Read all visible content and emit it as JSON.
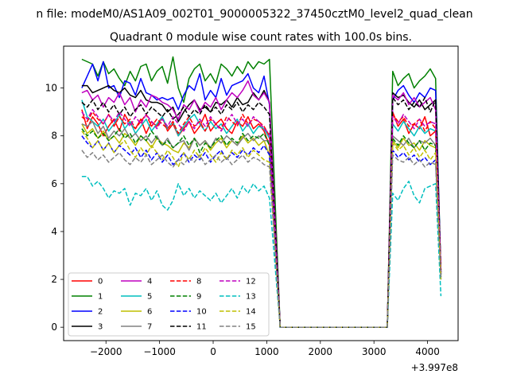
{
  "figure": {
    "suptitle": "n file: modeM0/AS1A09_002T01_9000005322_37450cztM0_level2_quad_clean",
    "title": "Quadrant 0 module wise count rates with 100.0s bins.",
    "x_offset_label": "+3.997e8"
  },
  "chart_data": {
    "type": "line",
    "title": "Quadrant 0 module wise count rates with 100.0s bins.",
    "x_offset": 399700000,
    "xlim": [
      -2790,
      4570
    ],
    "ylim": [
      -0.56,
      11.75
    ],
    "xticks": [
      -2000,
      -1000,
      0,
      1000,
      2000,
      3000,
      4000
    ],
    "xtick_labels": [
      "−2000",
      "−1000",
      "0",
      "1000",
      "2000",
      "3000",
      "4000"
    ],
    "yticks": [
      0,
      2,
      4,
      6,
      8,
      10
    ],
    "ytick_labels": [
      "0",
      "2",
      "4",
      "6",
      "8",
      "10"
    ],
    "grid": false,
    "legend_position": "lower-left",
    "legend_columns": 4,
    "segments": [
      {
        "x0": -2450,
        "n": 36,
        "step": 100
      },
      {
        "x0": 1250,
        "n": 21,
        "step": 100
      },
      {
        "x0": 3350,
        "n": 10,
        "step": 100
      }
    ],
    "series": [
      {
        "name": "0",
        "color": "#ff0000",
        "dash": "solid",
        "values": [
          9.1,
          8.3,
          8.8,
          8.5,
          8.0,
          8.4,
          8.7,
          8.2,
          8.9,
          8.5,
          8.3,
          8.7,
          8.1,
          8.6,
          8.4,
          8.8,
          8.2,
          8.5,
          8.0,
          8.3,
          8.6,
          8.1,
          8.4,
          8.9,
          8.2,
          8.5,
          8.7,
          8.3,
          8.1,
          8.6,
          8.4,
          8.8,
          8.3,
          8.5,
          8.2,
          7.6,
          0,
          0,
          0,
          0,
          0,
          0,
          0,
          0,
          0,
          0,
          0,
          0,
          0,
          0,
          0,
          0,
          0,
          0,
          0,
          0,
          0,
          9.0,
          8.4,
          8.7,
          8.1,
          8.5,
          8.3,
          8.8,
          8.0,
          8.2,
          2.4
        ]
      },
      {
        "name": "1",
        "color": "#008000",
        "dash": "solid",
        "values": [
          11.2,
          11.1,
          11.0,
          10.5,
          11.1,
          10.6,
          10.8,
          10.4,
          10.1,
          10.7,
          10.3,
          10.9,
          11.0,
          10.3,
          10.7,
          10.9,
          10.2,
          11.3,
          10.0,
          9.4,
          10.4,
          10.8,
          11.0,
          10.3,
          10.6,
          10.2,
          11.0,
          10.8,
          10.5,
          10.9,
          10.6,
          11.1,
          10.8,
          11.1,
          11.0,
          11.2,
          0,
          0,
          0,
          0,
          0,
          0,
          0,
          0,
          0,
          0,
          0,
          0,
          0,
          0,
          0,
          0,
          0,
          0,
          0,
          0,
          0,
          10.7,
          10.1,
          10.4,
          10.6,
          10.0,
          10.3,
          10.5,
          10.8,
          10.4,
          2.2
        ]
      },
      {
        "name": "2",
        "color": "#0000ff",
        "dash": "solid",
        "values": [
          10.0,
          10.5,
          11.0,
          10.3,
          11.1,
          10.0,
          10.1,
          9.6,
          10.3,
          10.2,
          9.7,
          10.4,
          9.8,
          9.7,
          9.5,
          9.6,
          9.5,
          9.6,
          9.1,
          9.7,
          10.1,
          9.9,
          10.6,
          9.5,
          9.9,
          9.6,
          10.4,
          9.7,
          10.1,
          10.2,
          10.3,
          10.6,
          10.0,
          9.8,
          10.5,
          9.3,
          0,
          0,
          0,
          0,
          0,
          0,
          0,
          0,
          0,
          0,
          0,
          0,
          0,
          0,
          0,
          0,
          0,
          0,
          0,
          0,
          0,
          9.5,
          9.9,
          10.1,
          9.7,
          9.4,
          9.8,
          9.6,
          10.0,
          9.9,
          2.3
        ]
      },
      {
        "name": "3",
        "color": "#000000",
        "dash": "solid",
        "values": [
          10.1,
          10.1,
          9.8,
          9.9,
          10.0,
          10.1,
          9.9,
          9.8,
          10.0,
          9.7,
          9.6,
          9.9,
          9.5,
          9.4,
          9.4,
          9.3,
          9.0,
          9.2,
          8.6,
          9.0,
          9.3,
          9.5,
          9.1,
          9.2,
          9.0,
          9.4,
          9.3,
          9.5,
          9.2,
          9.6,
          9.3,
          9.4,
          9.8,
          9.5,
          9.9,
          9.4,
          0,
          0,
          0,
          0,
          0,
          0,
          0,
          0,
          0,
          0,
          0,
          0,
          0,
          0,
          0,
          0,
          0,
          0,
          0,
          0,
          0,
          9.8,
          9.6,
          9.7,
          9.4,
          9.2,
          9.5,
          9.1,
          9.3,
          9.5,
          2.2
        ]
      },
      {
        "name": "4",
        "color": "#bf00bf",
        "dash": "solid",
        "values": [
          9.8,
          9.9,
          9.5,
          9.7,
          9.2,
          9.6,
          9.4,
          9.8,
          9.3,
          9.6,
          9.0,
          9.5,
          9.2,
          9.7,
          9.6,
          9.4,
          9.3,
          9.1,
          8.7,
          9.3,
          9.1,
          9.5,
          9.0,
          9.4,
          9.2,
          9.6,
          9.1,
          9.5,
          9.8,
          9.6,
          9.9,
          10.3,
          9.7,
          9.5,
          9.8,
          9.4,
          0,
          0,
          0,
          0,
          0,
          0,
          0,
          0,
          0,
          0,
          0,
          0,
          0,
          0,
          0,
          0,
          0,
          0,
          0,
          0,
          0,
          9.7,
          9.5,
          9.8,
          9.3,
          9.6,
          9.2,
          9.4,
          9.6,
          9.1,
          2.3
        ]
      },
      {
        "name": "5",
        "color": "#00bfbf",
        "dash": "solid",
        "values": [
          9.5,
          8.8,
          8.6,
          8.4,
          8.7,
          8.2,
          8.5,
          8.9,
          8.3,
          8.6,
          8.1,
          8.4,
          8.7,
          8.2,
          8.5,
          8.8,
          8.3,
          8.6,
          8.0,
          8.4,
          8.7,
          8.9,
          8.5,
          8.2,
          8.6,
          8.3,
          8.5,
          8.1,
          8.4,
          8.7,
          8.2,
          8.5,
          8.1,
          8.4,
          8.3,
          7.9,
          0,
          0,
          0,
          0,
          0,
          0,
          0,
          0,
          0,
          0,
          0,
          0,
          0,
          0,
          0,
          0,
          0,
          0,
          0,
          0,
          0,
          8.5,
          8.2,
          8.6,
          8.3,
          8.0,
          8.4,
          8.1,
          8.3,
          8.2,
          2.2
        ]
      },
      {
        "name": "6",
        "color": "#bfbf00",
        "dash": "solid",
        "values": [
          8.5,
          8.1,
          8.3,
          7.9,
          8.2,
          7.8,
          8.0,
          7.7,
          8.1,
          7.9,
          7.6,
          8.0,
          7.8,
          7.5,
          7.9,
          7.7,
          7.6,
          7.4,
          7.3,
          7.7,
          7.5,
          7.9,
          7.6,
          7.8,
          7.4,
          7.7,
          7.9,
          7.5,
          7.8,
          7.6,
          8.0,
          7.7,
          7.9,
          7.6,
          7.8,
          7.2,
          0,
          0,
          0,
          0,
          0,
          0,
          0,
          0,
          0,
          0,
          0,
          0,
          0,
          0,
          0,
          0,
          0,
          0,
          0,
          0,
          0,
          7.8,
          7.5,
          7.9,
          7.6,
          7.7,
          7.4,
          7.8,
          7.6,
          7.5,
          2.1
        ]
      },
      {
        "name": "7",
        "color": "#808080",
        "dash": "solid",
        "values": [
          8.5,
          8.4,
          8.6,
          8.1,
          8.4,
          7.9,
          8.2,
          8.0,
          8.3,
          7.9,
          8.1,
          7.8,
          8.0,
          7.7,
          8.0,
          7.6,
          7.9,
          7.5,
          7.7,
          7.8,
          7.4,
          7.9,
          7.6,
          7.8,
          7.5,
          7.9,
          7.7,
          8.0,
          7.8,
          7.6,
          7.9,
          8.1,
          7.8,
          8.0,
          7.8,
          7.8,
          0,
          0,
          0,
          0,
          0,
          0,
          0,
          0,
          0,
          0,
          0,
          0,
          0,
          0,
          0,
          0,
          0,
          0,
          0,
          0,
          0,
          8.0,
          7.8,
          7.6,
          7.9,
          7.5,
          7.8,
          7.7,
          7.9,
          7.6,
          2.1
        ]
      },
      {
        "name": "8",
        "color": "#ff0000",
        "dash": "dashed",
        "values": [
          8.8,
          8.6,
          9.0,
          8.7,
          8.5,
          8.9,
          8.4,
          8.8,
          8.5,
          8.7,
          8.3,
          8.6,
          8.9,
          8.4,
          8.7,
          8.5,
          8.3,
          8.6,
          8.1,
          8.5,
          8.8,
          8.4,
          8.6,
          8.2,
          8.7,
          8.5,
          8.3,
          8.8,
          8.6,
          8.4,
          8.9,
          8.5,
          8.7,
          8.6,
          8.4,
          8.0,
          0,
          0,
          0,
          0,
          0,
          0,
          0,
          0,
          0,
          0,
          0,
          0,
          0,
          0,
          0,
          0,
          0,
          0,
          0,
          0,
          0,
          8.9,
          8.6,
          8.8,
          8.4,
          8.5,
          8.7,
          8.2,
          8.6,
          8.3,
          2.4
        ]
      },
      {
        "name": "9",
        "color": "#008000",
        "dash": "dashed",
        "values": [
          8.3,
          8.0,
          8.2,
          7.9,
          8.1,
          7.8,
          8.0,
          8.3,
          7.9,
          8.1,
          7.7,
          8.0,
          7.8,
          8.2,
          7.9,
          7.6,
          7.8,
          7.5,
          7.7,
          8.0,
          7.6,
          7.9,
          7.3,
          7.7,
          7.5,
          7.8,
          8.0,
          7.6,
          7.9,
          7.7,
          8.1,
          7.8,
          8.0,
          7.9,
          8.1,
          7.6,
          0,
          0,
          0,
          0,
          0,
          0,
          0,
          0,
          0,
          0,
          0,
          0,
          0,
          0,
          0,
          0,
          0,
          0,
          0,
          0,
          0,
          7.9,
          7.6,
          8.0,
          7.7,
          7.5,
          7.8,
          7.4,
          7.7,
          7.6,
          2.1
        ]
      },
      {
        "name": "10",
        "color": "#0000ff",
        "dash": "dashed",
        "values": [
          8.0,
          7.7,
          7.5,
          7.8,
          7.4,
          7.7,
          7.3,
          7.6,
          7.4,
          7.2,
          7.5,
          7.1,
          7.4,
          7.0,
          7.3,
          6.9,
          7.2,
          6.8,
          7.0,
          7.3,
          6.9,
          7.2,
          7.0,
          7.3,
          6.9,
          7.2,
          7.4,
          7.0,
          7.3,
          7.1,
          7.4,
          7.2,
          7.5,
          7.3,
          7.6,
          7.2,
          0,
          0,
          0,
          0,
          0,
          0,
          0,
          0,
          0,
          0,
          0,
          0,
          0,
          0,
          0,
          0,
          0,
          0,
          0,
          0,
          0,
          7.4,
          7.1,
          7.3,
          7.0,
          7.2,
          6.9,
          7.1,
          6.8,
          7.0,
          2.0
        ]
      },
      {
        "name": "11",
        "color": "#000000",
        "dash": "dashed",
        "values": [
          9.4,
          9.2,
          9.5,
          9.1,
          9.4,
          9.0,
          9.3,
          8.9,
          9.2,
          8.8,
          9.1,
          9.3,
          8.9,
          9.2,
          9.0,
          8.8,
          9.1,
          8.7,
          8.9,
          9.2,
          8.8,
          9.1,
          8.9,
          9.3,
          9.0,
          9.2,
          8.9,
          9.3,
          9.1,
          9.4,
          9.0,
          9.3,
          9.1,
          9.4,
          9.2,
          8.9,
          0,
          0,
          0,
          0,
          0,
          0,
          0,
          0,
          0,
          0,
          0,
          0,
          0,
          0,
          0,
          0,
          0,
          0,
          0,
          0,
          0,
          9.6,
          9.3,
          9.5,
          9.1,
          9.4,
          9.2,
          9.6,
          9.0,
          9.5,
          2.3
        ]
      },
      {
        "name": "12",
        "color": "#bf00bf",
        "dash": "dashed",
        "values": [
          9.0,
          8.7,
          9.1,
          8.8,
          8.5,
          8.9,
          8.6,
          9.0,
          8.7,
          8.4,
          8.8,
          8.5,
          8.9,
          8.6,
          8.3,
          8.7,
          8.4,
          8.8,
          8.5,
          8.2,
          8.6,
          8.3,
          8.7,
          8.4,
          8.8,
          8.5,
          8.2,
          8.6,
          8.9,
          8.5,
          8.7,
          8.4,
          8.8,
          8.6,
          8.3,
          8.1,
          0,
          0,
          0,
          0,
          0,
          0,
          0,
          0,
          0,
          0,
          0,
          0,
          0,
          0,
          0,
          0,
          0,
          0,
          0,
          0,
          0,
          8.8,
          8.5,
          8.9,
          8.6,
          8.3,
          8.7,
          8.4,
          8.6,
          8.5,
          2.2
        ]
      },
      {
        "name": "13",
        "color": "#00bfbf",
        "dash": "dashed",
        "values": [
          6.3,
          6.3,
          5.9,
          6.1,
          5.8,
          5.4,
          5.7,
          5.6,
          5.8,
          5.1,
          5.6,
          5.5,
          5.8,
          5.3,
          5.7,
          5.1,
          4.9,
          5.3,
          6.0,
          5.5,
          5.8,
          5.4,
          5.7,
          5.5,
          5.3,
          5.6,
          5.2,
          5.5,
          5.8,
          5.4,
          5.9,
          5.6,
          6.0,
          5.7,
          5.9,
          5.4,
          0,
          0,
          0,
          0,
          0,
          0,
          0,
          0,
          0,
          0,
          0,
          0,
          0,
          0,
          0,
          0,
          0,
          0,
          0,
          0,
          0,
          5.6,
          5.3,
          5.8,
          6.1,
          5.5,
          5.2,
          5.8,
          5.9,
          6.0,
          1.3
        ]
      },
      {
        "name": "14",
        "color": "#bfbf00",
        "dash": "dashed",
        "values": [
          8.2,
          7.9,
          7.5,
          7.8,
          7.4,
          7.7,
          7.3,
          7.6,
          7.8,
          7.4,
          7.1,
          7.5,
          7.2,
          7.6,
          7.3,
          7.0,
          7.4,
          7.1,
          6.7,
          7.3,
          7.0,
          7.4,
          7.1,
          7.5,
          7.2,
          6.9,
          7.3,
          7.0,
          7.4,
          7.2,
          7.5,
          7.1,
          7.4,
          7.2,
          7.0,
          6.9,
          0,
          0,
          0,
          0,
          0,
          0,
          0,
          0,
          0,
          0,
          0,
          0,
          0,
          0,
          0,
          0,
          0,
          0,
          0,
          0,
          0,
          7.7,
          7.4,
          7.6,
          7.2,
          7.5,
          7.1,
          7.4,
          7.0,
          7.3,
          2.0
        ]
      },
      {
        "name": "15",
        "color": "#808080",
        "dash": "dashed",
        "values": [
          7.4,
          7.1,
          7.3,
          7.0,
          7.2,
          6.9,
          7.1,
          7.3,
          7.0,
          6.8,
          7.1,
          6.9,
          7.2,
          6.8,
          7.0,
          7.2,
          6.9,
          6.7,
          7.0,
          6.8,
          7.1,
          6.9,
          7.2,
          6.8,
          7.0,
          7.2,
          6.9,
          7.1,
          6.8,
          7.0,
          7.2,
          6.9,
          7.1,
          7.0,
          6.8,
          6.7,
          0,
          0,
          0,
          0,
          0,
          0,
          0,
          0,
          0,
          0,
          0,
          0,
          0,
          0,
          0,
          0,
          0,
          0,
          0,
          0,
          0,
          7.2,
          7.0,
          6.9,
          7.1,
          6.8,
          7.0,
          6.7,
          6.9,
          6.8,
          2.0
        ]
      }
    ]
  }
}
